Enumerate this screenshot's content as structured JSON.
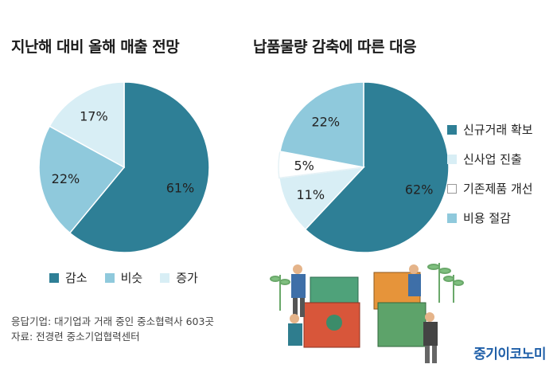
{
  "titles": {
    "left": "지난해 대비 올해 매출 전망",
    "right": "납품물량 감축에 따른 대응"
  },
  "colors": {
    "dark_teal": "#2e7f96",
    "light_blue": "#8fc9dc",
    "pale_blue": "#d8eef5",
    "white": "#ffffff",
    "brand": "#1f5fa8"
  },
  "chart_data": [
    {
      "type": "pie",
      "title": "지난해 대비 올해 매출 전망",
      "slices": [
        {
          "label": "감소",
          "value": 61,
          "color": "#2e7f96",
          "value_label": "61%"
        },
        {
          "label": "비슷",
          "value": 22,
          "color": "#8fc9dc",
          "value_label": "22%"
        },
        {
          "label": "증가",
          "value": 17,
          "color": "#d8eef5",
          "value_label": "17%"
        }
      ],
      "legend_position": "bottom"
    },
    {
      "type": "pie",
      "title": "납품물량 감축에 따른 대응",
      "slices": [
        {
          "label": "신규거래 확보",
          "value": 62,
          "color": "#2e7f96",
          "value_label": "62%"
        },
        {
          "label": "신사업 진출",
          "value": 11,
          "color": "#d8eef5",
          "value_label": "11%"
        },
        {
          "label": "기존제품 개선",
          "value": 5,
          "color": "#ffffff",
          "value_label": "5%"
        },
        {
          "label": "비용 절감",
          "value": 22,
          "color": "#8fc9dc",
          "value_label": "22%"
        }
      ],
      "legend_position": "right"
    }
  ],
  "source": {
    "line1": "응답기업: 대기업과 거래 중인 중소협력사 603곳",
    "line2": "자료: 전경련 중소기업협력센터"
  },
  "brand": "중기이코노미"
}
